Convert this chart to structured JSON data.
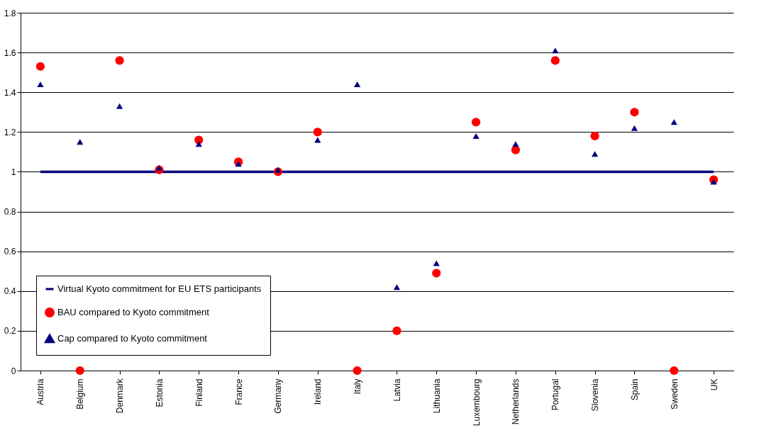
{
  "chart_data": {
    "type": "scatter",
    "categories": [
      "Austria",
      "Belgium",
      "Denmark",
      "Estonia",
      "Finland",
      "France",
      "Germany",
      "Ireland",
      "Italy",
      "Latvia",
      "Lithuania",
      "Luxembourg",
      "Netherlands",
      "Portugal",
      "Slovenia",
      "Spain",
      "Sweden",
      "UK"
    ],
    "series": [
      {
        "name": "Virtual Kyoto commitment for EU ETS participants",
        "type": "line",
        "marker": "none",
        "color": "#000080",
        "values": [
          1,
          1,
          1,
          1,
          1,
          1,
          1,
          1,
          1,
          1,
          1,
          1,
          1,
          1,
          1,
          1,
          1,
          1
        ]
      },
      {
        "name": "BAU compared to Kyoto commitment",
        "marker": "circle",
        "color": "#ff0000",
        "values": [
          1.53,
          0,
          1.56,
          1.01,
          1.16,
          1.05,
          1.0,
          1.2,
          0,
          0.2,
          0.49,
          1.25,
          1.11,
          1.56,
          1.18,
          1.3,
          0,
          0.96
        ]
      },
      {
        "name": "Cap compared to Kyoto commitment",
        "marker": "triangle",
        "color": "#000080",
        "values": [
          1.44,
          1.15,
          1.33,
          1.02,
          1.14,
          1.04,
          1.01,
          1.16,
          1.44,
          0.42,
          0.54,
          1.18,
          1.14,
          1.61,
          1.09,
          1.22,
          1.25,
          0.95
        ]
      }
    ],
    "ylim": [
      0,
      1.8
    ],
    "yticks": [
      0,
      0.2,
      0.4,
      0.6,
      0.8,
      1,
      1.2,
      1.4,
      1.6,
      1.8
    ],
    "grid": "y",
    "legend": "bottom left"
  }
}
